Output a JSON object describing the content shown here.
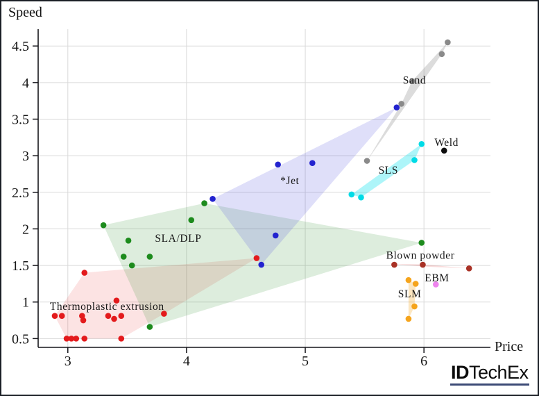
{
  "logo": {
    "bold": "ID",
    "rest": "TechEx",
    "underline_color": "#3c4a76"
  },
  "chart_data": {
    "type": "scatter",
    "title": "",
    "xlabel": "Price",
    "ylabel": "Speed",
    "x_ticks": [
      3,
      4,
      5,
      6
    ],
    "y_ticks": [
      0.5,
      1,
      1.5,
      2,
      2.5,
      3,
      3.5,
      4,
      4.5
    ],
    "x_range": [
      2.75,
      6.56
    ],
    "y_range": [
      0.38,
      4.73
    ],
    "grid": true,
    "grid_color": "#d9d9d9",
    "axis_color": "#15151a",
    "point_radius": 4.3,
    "series": [
      {
        "name": "thermoplastic-extrusion",
        "label": "Thermoplastic extrusion",
        "label_pos": [
          3.33,
          0.94
        ],
        "color": "#e31a1c",
        "fill": "rgba(231,56,56,0.14)",
        "points": [
          [
            3.14,
            1.4
          ],
          [
            3.41,
            1.02
          ],
          [
            2.89,
            0.81
          ],
          [
            2.95,
            0.81
          ],
          [
            3.12,
            0.81
          ],
          [
            3.13,
            0.75
          ],
          [
            3.34,
            0.81
          ],
          [
            3.39,
            0.77
          ],
          [
            3.45,
            0.81
          ],
          [
            3.81,
            0.84
          ],
          [
            2.99,
            0.5
          ],
          [
            3.03,
            0.5
          ],
          [
            3.07,
            0.5
          ],
          [
            3.14,
            0.5
          ],
          [
            3.45,
            0.5
          ],
          [
            4.59,
            1.6
          ]
        ],
        "hull": [
          [
            2.89,
            0.81
          ],
          [
            3.14,
            1.4
          ],
          [
            4.59,
            1.6
          ],
          [
            3.81,
            0.84
          ],
          [
            3.45,
            0.5
          ],
          [
            2.99,
            0.5
          ]
        ]
      },
      {
        "name": "sla-dlp",
        "label": "SLA/DLP",
        "label_pos": [
          3.93,
          1.87
        ],
        "color": "#1d8b1d",
        "fill": "rgba(55,150,55,0.17)",
        "points": [
          [
            3.3,
            2.05
          ],
          [
            4.04,
            2.12
          ],
          [
            4.15,
            2.35
          ],
          [
            3.51,
            1.84
          ],
          [
            3.47,
            1.62
          ],
          [
            3.69,
            1.62
          ],
          [
            3.54,
            1.5
          ],
          [
            3.69,
            0.66
          ],
          [
            5.98,
            1.81
          ]
        ],
        "hull": [
          [
            3.3,
            2.05
          ],
          [
            4.15,
            2.35
          ],
          [
            5.98,
            1.81
          ],
          [
            3.69,
            0.66
          ]
        ]
      },
      {
        "name": "jet",
        "label": "*Jet",
        "label_pos": [
          4.87,
          2.66
        ],
        "color": "#2323cf",
        "fill": "rgba(80,80,220,0.18)",
        "points": [
          [
            4.22,
            2.41
          ],
          [
            4.77,
            2.88
          ],
          [
            5.06,
            2.9
          ],
          [
            4.75,
            1.91
          ],
          [
            4.63,
            1.51
          ],
          [
            5.77,
            3.66
          ]
        ],
        "hull": [
          [
            4.22,
            2.41
          ],
          [
            5.77,
            3.66
          ],
          [
            4.63,
            1.51
          ]
        ]
      },
      {
        "name": "sls",
        "label": "SLS",
        "label_pos": [
          5.7,
          2.8
        ],
        "color": "#00dbe6",
        "fill": "rgba(0,225,235,0.32)",
        "points": [
          [
            5.39,
            2.47
          ],
          [
            5.47,
            2.43
          ],
          [
            5.92,
            2.94
          ],
          [
            5.98,
            3.16
          ]
        ],
        "hull": [
          [
            5.39,
            2.47
          ],
          [
            5.98,
            3.16
          ],
          [
            5.92,
            2.94
          ],
          [
            5.47,
            2.43
          ]
        ]
      },
      {
        "name": "sand",
        "label": "Sand",
        "label_pos": [
          5.92,
          4.03
        ],
        "color": "#8a8a8a",
        "fill": "rgba(150,150,150,0.33)",
        "points": [
          [
            5.52,
            2.93
          ],
          [
            5.81,
            3.71
          ],
          [
            5.9,
            4.02
          ],
          [
            6.15,
            4.39
          ],
          [
            6.2,
            4.55
          ]
        ],
        "hull": [
          [
            5.52,
            2.93
          ],
          [
            5.81,
            3.71
          ],
          [
            5.9,
            4.02
          ],
          [
            6.2,
            4.55
          ],
          [
            6.15,
            4.39
          ]
        ]
      },
      {
        "name": "weld",
        "label": "Weld",
        "label_pos": [
          6.19,
          3.18
        ],
        "color": "#0d0d0d",
        "fill": null,
        "points": [
          [
            6.17,
            3.07
          ]
        ],
        "hull": null
      },
      {
        "name": "blown-powder",
        "label": "Blown powder",
        "label_pos": [
          5.97,
          1.64
        ],
        "color": "#a93226",
        "fill": "rgba(222,90,90,0.22)",
        "points": [
          [
            5.75,
            1.51
          ],
          [
            5.99,
            1.51
          ],
          [
            6.38,
            1.46
          ]
        ],
        "hull": [
          [
            5.75,
            1.52
          ],
          [
            5.99,
            1.515
          ],
          [
            6.38,
            1.46
          ],
          [
            5.99,
            1.485
          ]
        ]
      },
      {
        "name": "ebm",
        "label": "EBM",
        "label_pos": [
          6.11,
          1.33
        ],
        "color": "#ee85ee",
        "fill": null,
        "points": [
          [
            6.1,
            1.24
          ]
        ],
        "hull": null
      },
      {
        "name": "slm",
        "label": "SLM",
        "label_pos": [
          5.88,
          1.11
        ],
        "color": "#f5a41c",
        "fill": "rgba(245,164,28,0.28)",
        "points": [
          [
            5.87,
            1.3
          ],
          [
            5.93,
            1.25
          ],
          [
            5.92,
            0.94
          ],
          [
            5.87,
            0.77
          ]
        ],
        "hull": [
          [
            5.87,
            1.3
          ],
          [
            5.93,
            1.25
          ],
          [
            5.92,
            0.94
          ],
          [
            5.87,
            0.77
          ]
        ]
      }
    ]
  }
}
